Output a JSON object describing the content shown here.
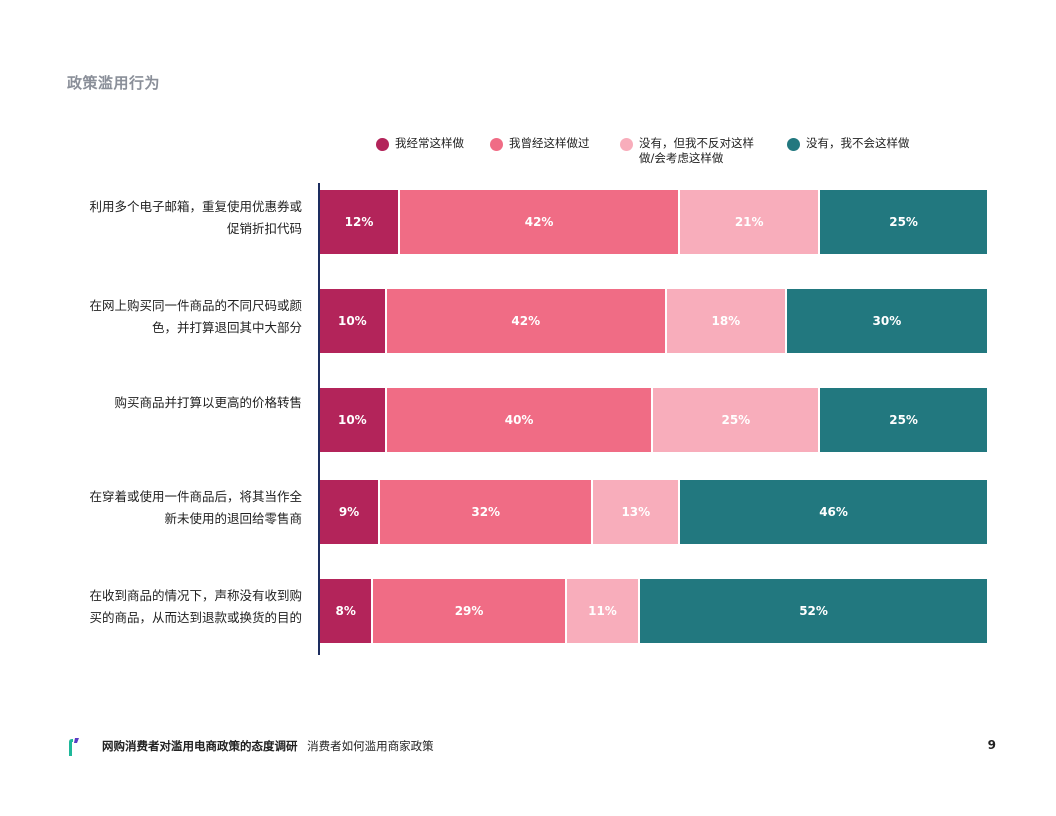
{
  "page": {
    "section_title": "政策滥用行为",
    "footer_title": "网购消费者对滥用电商政策的态度调研",
    "footer_subtitle": "消费者如何滥用商家政策",
    "page_number": "9"
  },
  "chart_data": {
    "type": "bar",
    "orientation": "horizontal",
    "stacked": true,
    "value_format": "percent",
    "legend_position": "top",
    "categories": [
      "利用多个电子邮箱，重复使用优惠券或\n促销折扣代码",
      "在网上购买同一件商品的不同尺码或颜\n色，并打算退回其中大部分",
      "购买商品并打算以更高的价格转售",
      "在穿着或使用一件商品后，将其当作全\n新未使用的退回给零售商",
      "在收到商品的情况下，声称没有收到购\n买的商品，从而达到退款或换货的目的"
    ],
    "series": [
      {
        "name": "我经常这样做",
        "color": "#b3245a",
        "values": [
          12,
          10,
          10,
          9,
          8
        ]
      },
      {
        "name": "我曾经这样做过",
        "color": "#f06c85",
        "values": [
          42,
          42,
          40,
          32,
          29
        ]
      },
      {
        "name": "没有，但我不反对这样\n做/会考虑这样做",
        "color": "#f8adbb",
        "values": [
          21,
          18,
          25,
          13,
          11
        ]
      },
      {
        "name": "没有，我不会这样做",
        "color": "#22787f",
        "values": [
          25,
          30,
          25,
          46,
          52
        ]
      }
    ],
    "xlim": [
      0,
      100
    ],
    "grid": false
  },
  "icons": {
    "footer_logo": "brand-logo-icon"
  },
  "colors": {
    "axis": "#1d2d5f",
    "title": "#8a8f99",
    "logo_teal": "#1fb89a",
    "logo_purple": "#5b3cc4"
  }
}
